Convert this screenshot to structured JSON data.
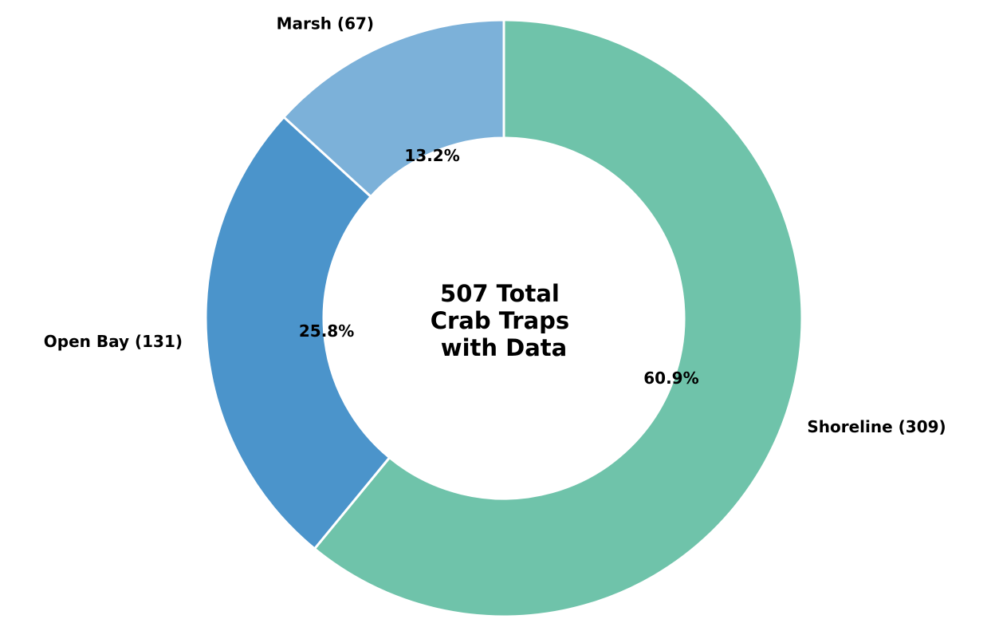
{
  "chart_data": {
    "type": "pie",
    "variant": "donut",
    "center_text": [
      "507 Total",
      "Crab Traps",
      "with Data"
    ],
    "slices": [
      {
        "label": "Shoreline (309)",
        "category": "Shoreline",
        "value": 309,
        "percent_label": "60.9%",
        "color": "#6fc3aa"
      },
      {
        "label": "Open Bay (131)",
        "category": "Open Bay",
        "value": 131,
        "percent_label": "25.8%",
        "color": "#4b94cb"
      },
      {
        "label": "Marsh (67)",
        "category": "Marsh",
        "value": 67,
        "percent_label": "13.2%",
        "color": "#7cb1d9"
      }
    ],
    "start_angle_deg": 90,
    "direction": "clockwise"
  }
}
